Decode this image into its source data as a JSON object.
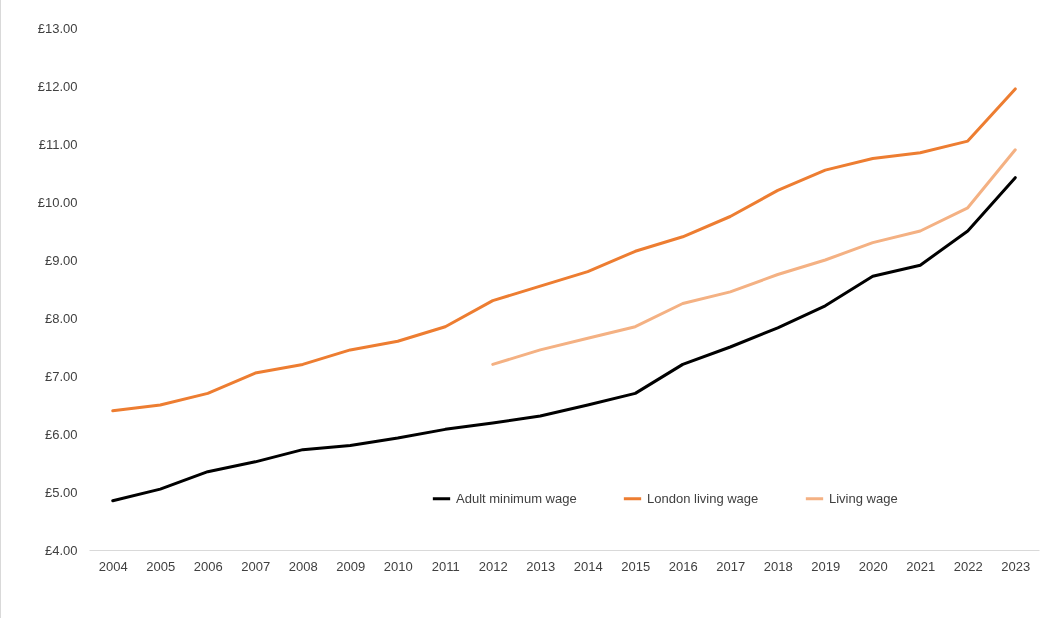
{
  "chart_data": {
    "type": "line",
    "categories": [
      "2004",
      "2005",
      "2006",
      "2007",
      "2008",
      "2009",
      "2010",
      "2011",
      "2012",
      "2013",
      "2014",
      "2015",
      "2016",
      "2017",
      "2018",
      "2019",
      "2020",
      "2021",
      "2022",
      "2023"
    ],
    "series": [
      {
        "name": "Adult minimum wage",
        "color": "#000000",
        "values": [
          4.85,
          5.05,
          5.35,
          5.52,
          5.73,
          5.8,
          5.93,
          6.08,
          6.19,
          6.31,
          6.5,
          6.7,
          7.2,
          7.5,
          7.83,
          8.21,
          8.72,
          8.91,
          9.5,
          10.42
        ]
      },
      {
        "name": "London living wage",
        "color": "#ed7d31",
        "values": [
          6.4,
          6.5,
          6.7,
          7.05,
          7.2,
          7.45,
          7.6,
          7.85,
          8.3,
          8.55,
          8.8,
          9.15,
          9.4,
          9.75,
          10.2,
          10.55,
          10.75,
          10.85,
          11.05,
          11.95
        ]
      },
      {
        "name": "Living wage",
        "color": "#f4b183",
        "values": [
          null,
          null,
          null,
          null,
          null,
          null,
          null,
          null,
          7.2,
          7.45,
          7.65,
          7.85,
          8.25,
          8.45,
          8.75,
          9.0,
          9.3,
          9.5,
          9.9,
          10.9
        ]
      }
    ],
    "ylim": [
      4,
      13
    ],
    "yticks": [
      {
        "value": 4,
        "label": "£4.00"
      },
      {
        "value": 5,
        "label": "£5.00"
      },
      {
        "value": 6,
        "label": "£6.00"
      },
      {
        "value": 7,
        "label": "£7.00"
      },
      {
        "value": 8,
        "label": "£8.00"
      },
      {
        "value": 9,
        "label": "£9.00"
      },
      {
        "value": 10,
        "label": "£10.00"
      },
      {
        "value": 11,
        "label": "£11.00"
      },
      {
        "value": 12,
        "label": "£12.00"
      },
      {
        "value": 13,
        "label": "£13.00"
      }
    ],
    "grid": false,
    "legend": "bottom"
  }
}
